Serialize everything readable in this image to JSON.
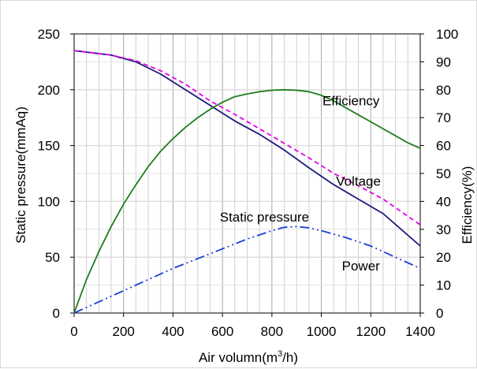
{
  "chart_data": {
    "type": "line",
    "x": {
      "label_prefix": "Air volumn(m",
      "label_sup": "3",
      "label_suffix": "/h)",
      "min": 0,
      "max": 1400,
      "ticks": [
        0,
        200,
        400,
        600,
        800,
        1000,
        1200,
        1400
      ]
    },
    "y_left": {
      "label": "Static pressure(mmAq)",
      "min": 0,
      "max": 250,
      "ticks": [
        0,
        50,
        100,
        150,
        200,
        250
      ]
    },
    "y_right": {
      "label": "Efficiency(%)",
      "min": 0,
      "max": 100,
      "ticks": [
        0,
        10,
        20,
        30,
        40,
        50,
        60,
        70,
        80,
        90,
        100
      ]
    },
    "grid": {
      "horizontal": true,
      "vertical": true
    },
    "series": [
      {
        "name": "Static pressure",
        "axis": "left",
        "color": "#1a1a7a",
        "style": "solid",
        "points": [
          [
            0,
            235
          ],
          [
            150,
            231
          ],
          [
            250,
            225
          ],
          [
            350,
            214
          ],
          [
            450,
            200
          ],
          [
            550,
            186
          ],
          [
            650,
            172
          ],
          [
            750,
            160
          ],
          [
            850,
            146
          ],
          [
            950,
            130
          ],
          [
            1050,
            115
          ],
          [
            1150,
            102
          ],
          [
            1250,
            89
          ],
          [
            1400,
            60
          ]
        ]
      },
      {
        "name": "Voltage",
        "axis": "left",
        "color": "#e600e6",
        "style": "dashed",
        "points": [
          [
            0,
            235
          ],
          [
            150,
            231
          ],
          [
            250,
            226
          ],
          [
            350,
            217
          ],
          [
            450,
            205
          ],
          [
            550,
            190
          ],
          [
            650,
            178
          ],
          [
            750,
            165
          ],
          [
            850,
            152
          ],
          [
            950,
            139
          ],
          [
            1050,
            125
          ],
          [
            1150,
            114
          ],
          [
            1250,
            102
          ],
          [
            1400,
            79
          ]
        ]
      },
      {
        "name": "Efficiency",
        "axis": "right",
        "color": "#1e7d1e",
        "style": "solid",
        "points": [
          [
            0,
            0
          ],
          [
            50,
            12
          ],
          [
            100,
            22
          ],
          [
            150,
            31
          ],
          [
            200,
            39
          ],
          [
            250,
            46
          ],
          [
            300,
            52.5
          ],
          [
            350,
            58
          ],
          [
            400,
            62.5
          ],
          [
            450,
            66.5
          ],
          [
            500,
            70
          ],
          [
            550,
            73
          ],
          [
            600,
            75.5
          ],
          [
            650,
            77.5
          ],
          [
            700,
            78.5
          ],
          [
            750,
            79.3
          ],
          [
            800,
            79.8
          ],
          [
            850,
            80
          ],
          [
            900,
            79.8
          ],
          [
            950,
            79.3
          ],
          [
            1000,
            78
          ],
          [
            1050,
            76
          ],
          [
            1100,
            73.5
          ],
          [
            1150,
            71
          ],
          [
            1200,
            68.5
          ],
          [
            1250,
            66
          ],
          [
            1300,
            63.5
          ],
          [
            1350,
            61
          ],
          [
            1400,
            59
          ]
        ]
      },
      {
        "name": "Power",
        "axis": "right",
        "color": "#1a3fd6",
        "style": "dashdotdot",
        "points": [
          [
            0,
            0
          ],
          [
            100,
            4
          ],
          [
            200,
            8
          ],
          [
            300,
            12
          ],
          [
            400,
            16
          ],
          [
            500,
            19.5
          ],
          [
            600,
            23
          ],
          [
            700,
            26.5
          ],
          [
            800,
            29.5
          ],
          [
            850,
            30.7
          ],
          [
            900,
            31
          ],
          [
            950,
            30.5
          ],
          [
            1000,
            29.5
          ],
          [
            1100,
            27
          ],
          [
            1200,
            24
          ],
          [
            1300,
            20
          ],
          [
            1400,
            16
          ]
        ]
      }
    ],
    "annotations": [
      {
        "text": "Efficiency",
        "at": [
          1120,
          74.5
        ],
        "axis": "right"
      },
      {
        "text": "Voltage",
        "at": [
          1150,
          114
        ],
        "axis": "left"
      },
      {
        "text": "Static pressure",
        "at": [
          770,
          82
        ],
        "axis": "left"
      },
      {
        "text": "Power",
        "at": [
          1160,
          38
        ],
        "axis": "left"
      }
    ]
  }
}
